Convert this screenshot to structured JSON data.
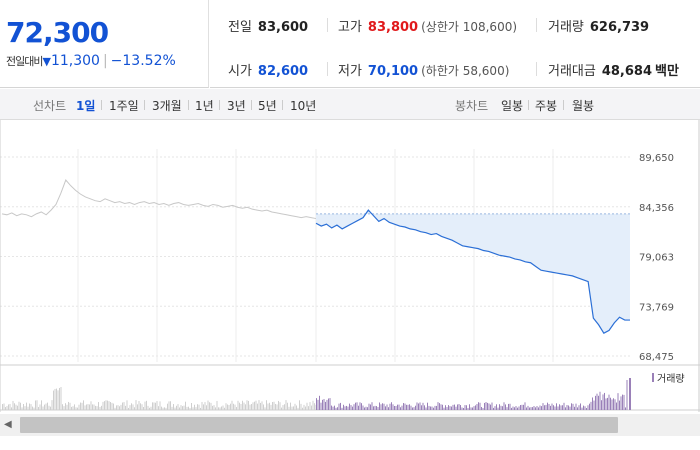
{
  "header": {
    "price": "72,300",
    "change_label": "전일대비",
    "change_arrow": "▼",
    "change_amount": "11,300",
    "change_pct": "−13.52%"
  },
  "stats": {
    "prev_close": {
      "label": "전일",
      "value": "83,600"
    },
    "high": {
      "label": "고가",
      "value": "83,800",
      "extra": "(상한가 108,600)"
    },
    "volume": {
      "label": "거래량",
      "value": "626,739"
    },
    "open": {
      "label": "시가",
      "value": "82,600"
    },
    "low": {
      "label": "저가",
      "value": "70,100",
      "extra": "(하한가 58,600)"
    },
    "trade_value": {
      "label": "거래대금",
      "value": "48,684",
      "unit": "백만"
    }
  },
  "tabs": {
    "line_label": "선차트",
    "line_periods": [
      "1일",
      "1주일",
      "3개월",
      "1년",
      "3년",
      "5년",
      "10년"
    ],
    "line_active": "1일",
    "candle_label": "봉차트",
    "candle_periods": [
      "일봉",
      "주봉",
      "월봉"
    ]
  },
  "colors": {
    "price_blue": "#1252d4",
    "price_red": "#e0191b",
    "today_line": "#2b6fd6",
    "today_fill": "#e4eefa",
    "prev_line": "#c8c8c8",
    "volume_today": "#9a80b8",
    "volume_prev": "#cfcfcf"
  },
  "chart_data": {
    "type": "line",
    "y_ticks": [
      "89,650",
      "84,356",
      "79,063",
      "73,769",
      "68,475"
    ],
    "ylim": [
      68475,
      89650
    ],
    "prev_close": 83600,
    "previous_day_series": [
      83600,
      83500,
      83700,
      83400,
      83600,
      83500,
      83300,
      83600,
      83800,
      83500,
      84000,
      84600,
      85800,
      87200,
      86600,
      86100,
      85700,
      85400,
      85200,
      85000,
      84900,
      85200,
      85000,
      84800,
      84900,
      84700,
      84800,
      84600,
      84800,
      84900,
      84700,
      84800,
      84600,
      84700,
      84500,
      84700,
      84800,
      84600,
      84500,
      84600,
      84700,
      84500,
      84400,
      84600,
      84500,
      84300,
      84400,
      84500,
      84300,
      84200,
      84300,
      84100,
      84000,
      83900,
      84000,
      83800,
      83700,
      83600,
      83500,
      83400,
      83300,
      83200,
      83300,
      83200,
      83100
    ],
    "today_series": [
      82600,
      82300,
      82500,
      82100,
      82400,
      82000,
      82300,
      82600,
      82900,
      83200,
      84000,
      83400,
      82800,
      83100,
      82700,
      82500,
      82300,
      82200,
      82000,
      81900,
      81700,
      81600,
      81400,
      81500,
      81200,
      81000,
      80800,
      80500,
      80200,
      80100,
      80000,
      79900,
      79700,
      79600,
      79400,
      79200,
      79100,
      79000,
      78800,
      78700,
      78500,
      78400,
      78000,
      77600,
      77500,
      77400,
      77300,
      77200,
      77100,
      77000,
      76800,
      76600,
      76400,
      72500,
      71800,
      70900,
      71200,
      72000,
      72600,
      72300,
      72300
    ],
    "volume_label": "거래량"
  },
  "scrollbar": {
    "arrow": "◀"
  }
}
